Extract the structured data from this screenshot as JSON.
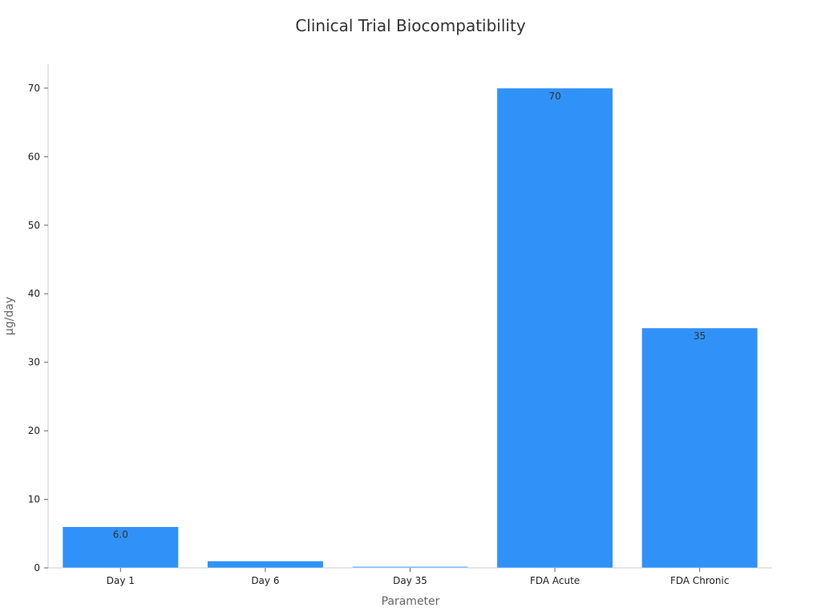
{
  "chart_data": {
    "type": "bar",
    "title": "Clinical Trial Biocompatibility",
    "xlabel": "Parameter",
    "ylabel": "µg/day",
    "categories": [
      "Day 1",
      "Day 6",
      "Day 35",
      "FDA Acute",
      "FDA Chronic"
    ],
    "values": [
      6.0,
      1.0,
      0.2,
      70,
      35
    ],
    "data_labels": [
      "6.0",
      "",
      "",
      "70",
      "35"
    ],
    "ylim": [
      0,
      73.5
    ],
    "yticks": [
      0,
      10,
      20,
      30,
      40,
      50,
      60,
      70
    ],
    "grid": false,
    "colors": {
      "bar": "#3092f8",
      "bar_small": "#5aa8f8",
      "axis": "#cccccc"
    }
  }
}
